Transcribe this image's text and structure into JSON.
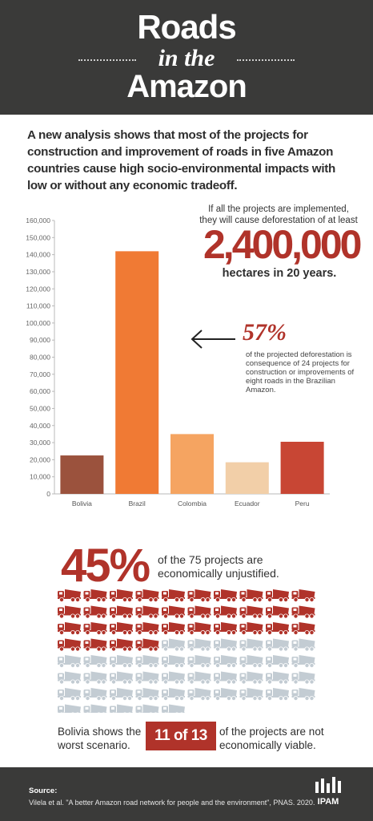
{
  "header": {
    "line1": "Roads",
    "line2": "in the",
    "line3": "Amazon"
  },
  "intro": "A new analysis shows that most of the projects for construction and improvement of roads in five Amazon countries cause high socio-environmental impacts with low or without any economic tradeoff.",
  "chart_data": {
    "type": "bar",
    "categories": [
      "Bolivia",
      "Brazil",
      "Colombia",
      "Ecuador",
      "Peru"
    ],
    "values": [
      22500,
      142000,
      35000,
      18500,
      30500
    ],
    "colors": [
      "#9b523d",
      "#f07a34",
      "#f5a461",
      "#f2cfa8",
      "#c84634"
    ],
    "ylim": [
      0,
      160000
    ],
    "yticks": [
      "0",
      "10,000",
      "20,000",
      "30,000",
      "40,000",
      "50,000",
      "60,000",
      "70,000",
      "80,000",
      "90,000",
      "100,000",
      "110,000",
      "120,000",
      "130,000",
      "140,000",
      "150,000",
      "160,000"
    ],
    "grid": false
  },
  "callouts": {
    "implemented": "If all the projects are implemented, they will cause deforestation of at least",
    "big_number": "2,400,000",
    "hectares": "hectares in 20 years.",
    "pct57": "57%",
    "pct57_desc": "of the projected deforestation is consequence of 24 projects for construction or improvements of eight roads in the Brazilian Amazon."
  },
  "projects": {
    "pct": "45%",
    "desc": "of the 75 projects are economically unjustified.",
    "total": 75,
    "unjustified": 34,
    "highlight_color": "#b0332a",
    "muted_color": "#c3ccd3"
  },
  "bolivia": {
    "left": "Bolivia shows the worst scenario.",
    "badge": "11 of 13",
    "right": "of the projects are not economically viable."
  },
  "footer": {
    "source_label": "Source:",
    "source_text": "Vilela et al. \"A better Amazon road network for people and the environment\", PNAS. 2020.",
    "logo_text": "IPAM"
  }
}
